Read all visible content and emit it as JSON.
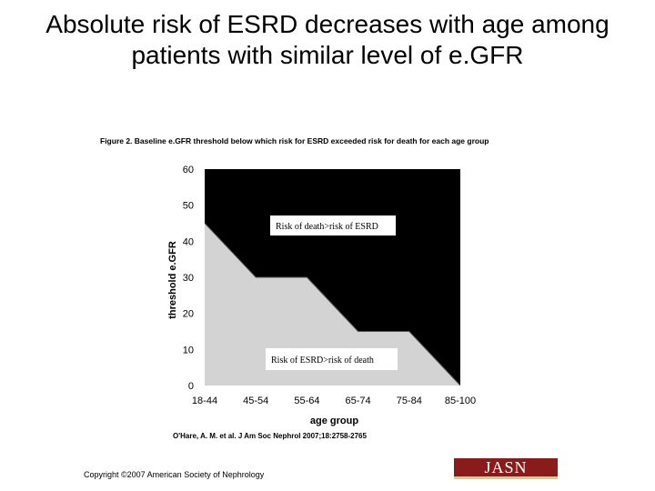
{
  "slide": {
    "title": "Absolute risk of ESRD decreases with age among patients with similar level of e.GFR"
  },
  "figure": {
    "caption": "Figure 2. Baseline e.GFR threshold below which risk for ESRD exceeded risk for death for each age group"
  },
  "chart_data": {
    "type": "area",
    "title": "Figure 2. Baseline e.GFR threshold below which risk for ESRD exceeded risk for death for each age group",
    "xlabel": "age group",
    "ylabel": "threshold e.GFR",
    "categories": [
      "18-44",
      "45-54",
      "55-64",
      "65-74",
      "75-84",
      "85-100"
    ],
    "ylim": [
      0,
      60
    ],
    "yticks": [
      0,
      10,
      20,
      30,
      40,
      50,
      60
    ],
    "threshold_boundary": [
      {
        "x": "18-44",
        "y": 45
      },
      {
        "x": "45-54",
        "y": 30
      },
      {
        "x": "55-64",
        "y": 30
      },
      {
        "x": "65-74",
        "y": 15
      },
      {
        "x": "75-84",
        "y": 15
      },
      {
        "x": "85-100",
        "y": 0
      }
    ],
    "regions": {
      "upper": {
        "label": "Risk of death>risk of ESRD",
        "color": "#000000"
      },
      "lower": {
        "label": "Risk of ESRD>risk of death",
        "color": "#d3d3d3"
      }
    }
  },
  "footer": {
    "citation": "O'Hare, A. M. et al. J Am Soc Nephrol 2007;18:2758-2765",
    "copyright": "Copyright ©2007 American Society of Nephrology",
    "journal_logo": "JASN"
  }
}
